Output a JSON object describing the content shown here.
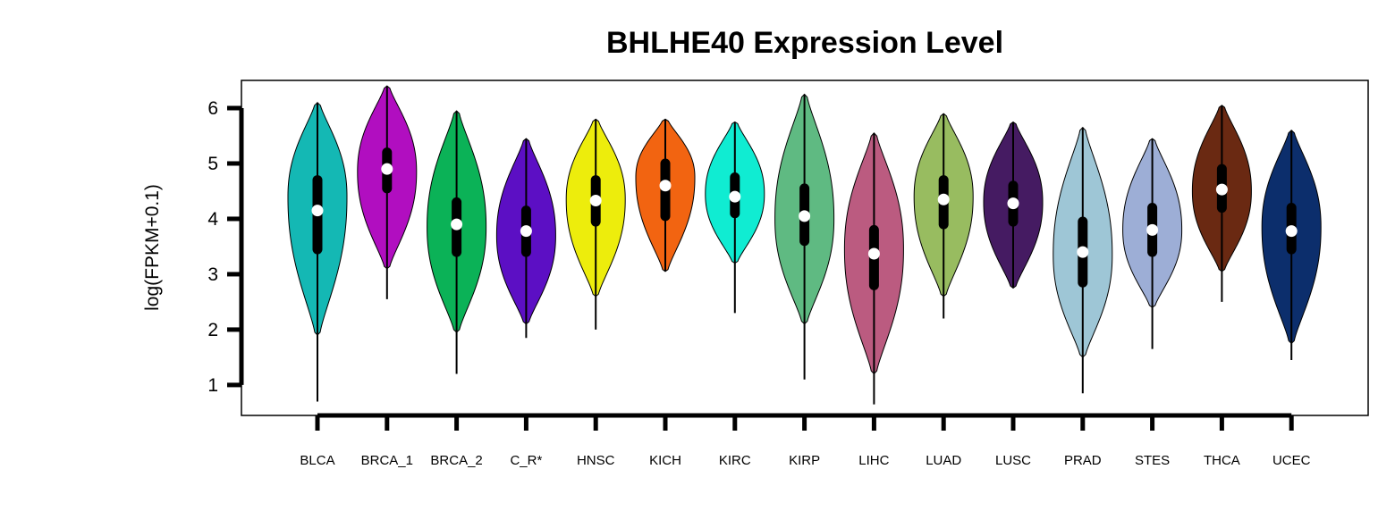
{
  "chart_data": {
    "type": "violin",
    "title": "BHLHE40 Expression Level",
    "xlabel": "",
    "ylabel": "log(FPKM+0.1)",
    "ylim": [
      0.45,
      6.5
    ],
    "yticks": [
      1,
      2,
      3,
      4,
      5,
      6
    ],
    "categories": [
      "BLCA",
      "BRCA_1",
      "BRCA_2",
      "C_R*",
      "HNSC",
      "KICH",
      "KIRC",
      "KIRP",
      "LIHC",
      "LUAD",
      "LUSC",
      "PRAD",
      "STES",
      "THCA",
      "UCEC"
    ],
    "series": [
      {
        "category": "BLCA",
        "color": "#14b8b4",
        "min": 0.7,
        "q1": 3.45,
        "median": 4.15,
        "q3": 4.7,
        "max": 6.1,
        "vmin": 1.9,
        "vmax": 6.1,
        "mode": 4.4
      },
      {
        "category": "BRCA_1",
        "color": "#b10ec0",
        "min": 2.55,
        "q1": 4.55,
        "median": 4.9,
        "q3": 5.2,
        "max": 6.4,
        "vmin": 3.1,
        "vmax": 6.4,
        "mode": 4.85
      },
      {
        "category": "BRCA_2",
        "color": "#0bb257",
        "min": 1.2,
        "q1": 3.4,
        "median": 3.9,
        "q3": 4.3,
        "max": 5.95,
        "vmin": 1.95,
        "vmax": 5.95,
        "mode": 3.85
      },
      {
        "category": "C_R*",
        "color": "#5c0fc4",
        "min": 1.85,
        "q1": 3.4,
        "median": 3.78,
        "q3": 4.15,
        "max": 5.45,
        "vmin": 2.1,
        "vmax": 5.45,
        "mode": 3.7
      },
      {
        "category": "HNSC",
        "color": "#eded0c",
        "min": 2.0,
        "q1": 3.95,
        "median": 4.33,
        "q3": 4.7,
        "max": 5.8,
        "vmin": 2.6,
        "vmax": 5.8,
        "mode": 4.35
      },
      {
        "category": "KICH",
        "color": "#f26411",
        "min": 3.05,
        "q1": 4.05,
        "median": 4.6,
        "q3": 5.0,
        "max": 5.8,
        "vmin": 3.05,
        "vmax": 5.8,
        "mode": 4.75
      },
      {
        "category": "KIRC",
        "color": "#10ecd2",
        "min": 2.3,
        "q1": 4.1,
        "median": 4.4,
        "q3": 4.75,
        "max": 5.75,
        "vmin": 3.2,
        "vmax": 5.75,
        "mode": 4.45
      },
      {
        "category": "KIRP",
        "color": "#5fba82",
        "min": 1.1,
        "q1": 3.6,
        "median": 4.05,
        "q3": 4.55,
        "max": 6.25,
        "vmin": 2.1,
        "vmax": 6.25,
        "mode": 4.0
      },
      {
        "category": "LIHC",
        "color": "#bb5b80",
        "min": 0.65,
        "q1": 2.8,
        "median": 3.37,
        "q3": 3.8,
        "max": 5.55,
        "vmin": 1.2,
        "vmax": 5.55,
        "mode": 3.45
      },
      {
        "category": "LUAD",
        "color": "#98bc60",
        "min": 2.2,
        "q1": 3.9,
        "median": 4.35,
        "q3": 4.7,
        "max": 5.9,
        "vmin": 2.6,
        "vmax": 5.9,
        "mode": 4.4
      },
      {
        "category": "LUSC",
        "color": "#451b62",
        "min": 2.75,
        "q1": 3.95,
        "median": 4.28,
        "q3": 4.6,
        "max": 5.75,
        "vmin": 2.75,
        "vmax": 5.75,
        "mode": 4.3
      },
      {
        "category": "PRAD",
        "color": "#9ec6d6",
        "min": 0.85,
        "q1": 2.85,
        "median": 3.4,
        "q3": 3.95,
        "max": 5.65,
        "vmin": 1.5,
        "vmax": 5.65,
        "mode": 3.35
      },
      {
        "category": "STES",
        "color": "#9daed6",
        "min": 1.65,
        "q1": 3.4,
        "median": 3.8,
        "q3": 4.2,
        "max": 5.45,
        "vmin": 2.4,
        "vmax": 5.45,
        "mode": 3.8
      },
      {
        "category": "THCA",
        "color": "#6a2912",
        "min": 2.5,
        "q1": 4.2,
        "median": 4.53,
        "q3": 4.9,
        "max": 6.05,
        "vmin": 3.05,
        "vmax": 6.05,
        "mode": 4.5
      },
      {
        "category": "UCEC",
        "color": "#0c2e6c",
        "min": 1.45,
        "q1": 3.45,
        "median": 3.78,
        "q3": 4.2,
        "max": 5.6,
        "vmin": 1.75,
        "vmax": 5.6,
        "mode": 3.85
      }
    ]
  }
}
